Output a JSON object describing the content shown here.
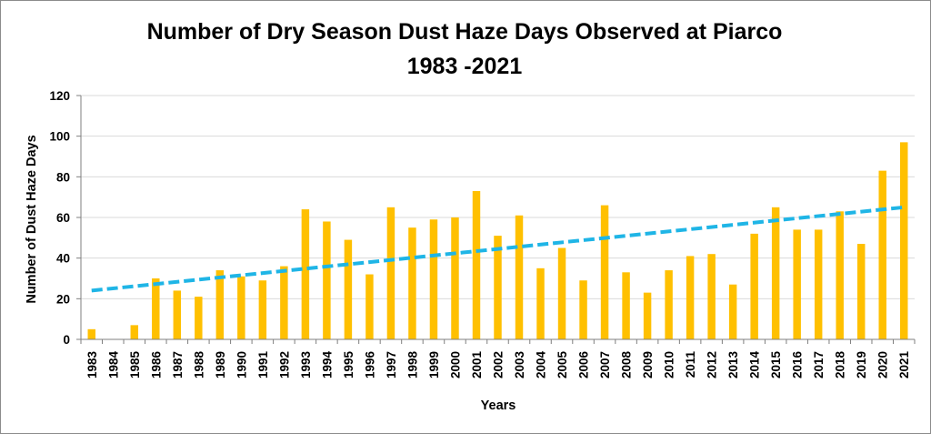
{
  "chart_data": {
    "type": "bar",
    "title": "Number of Dry Season Dust Haze Days Observed at Piarco",
    "subtitle": "1983 -2021",
    "xlabel": "Years",
    "ylabel": "Number of Dust Haze Days",
    "ylim": [
      0,
      120
    ],
    "yticks": [
      0,
      20,
      40,
      60,
      80,
      100,
      120
    ],
    "grid": true,
    "legend": "none",
    "categories": [
      "1983",
      "1984",
      "1985",
      "1986",
      "1987",
      "1988",
      "1989",
      "1990",
      "1991",
      "1992",
      "1993",
      "1994",
      "1995",
      "1996",
      "1997",
      "1998",
      "1999",
      "2000",
      "2001",
      "2002",
      "2003",
      "2004",
      "2005",
      "2006",
      "2007",
      "2008",
      "2009",
      "2010",
      "2011",
      "2012",
      "2013",
      "2014",
      "2015",
      "2016",
      "2017",
      "2018",
      "2019",
      "2020",
      "2021"
    ],
    "values": [
      5,
      0,
      7,
      30,
      24,
      21,
      34,
      31,
      29,
      36,
      64,
      58,
      49,
      32,
      65,
      55,
      59,
      60,
      73,
      51,
      61,
      35,
      45,
      29,
      66,
      33,
      23,
      34,
      41,
      42,
      27,
      52,
      65,
      54,
      54,
      63,
      47,
      83,
      97
    ],
    "trendline": {
      "type": "linear",
      "start_value": 24,
      "end_value": 65
    },
    "colors": {
      "bar": "#FFC000",
      "trendline": "#1FB5E6",
      "grid": "#D9D9D9",
      "axis": "#7F7F7F"
    }
  }
}
